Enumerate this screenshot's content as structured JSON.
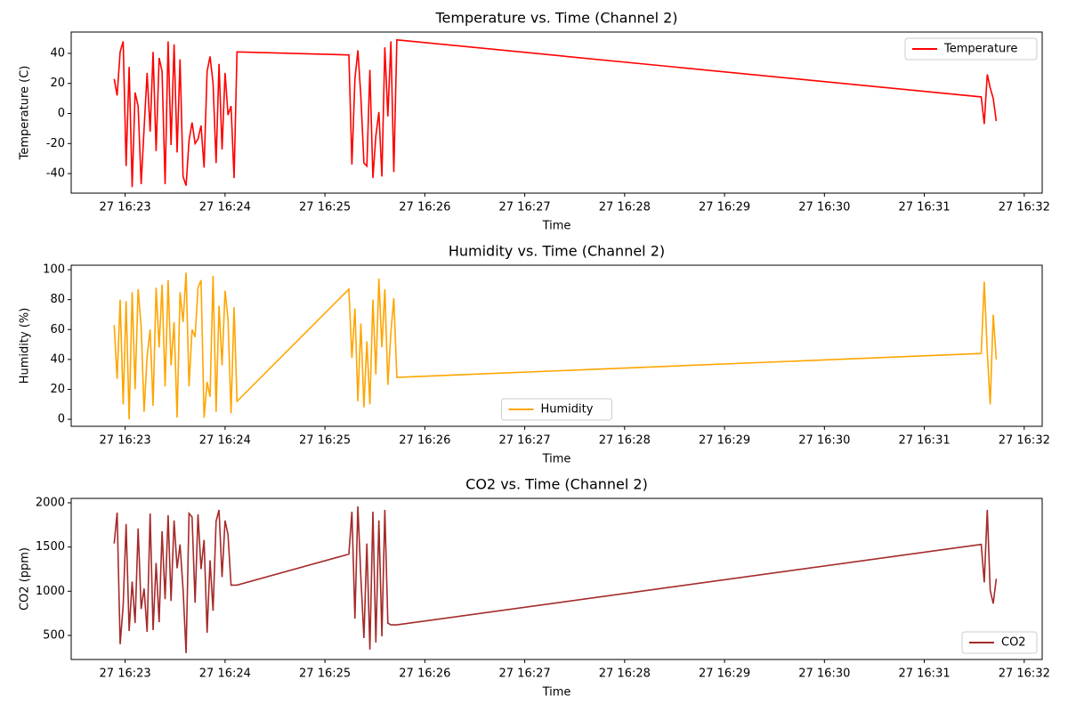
{
  "chart_data": [
    {
      "type": "line",
      "title": "Temperature vs. Time (Channel 2)",
      "xlabel": "Time",
      "ylabel": "Temperature (C)",
      "x": [
        22.89,
        22.92,
        22.95,
        22.98,
        23.01,
        23.04,
        23.07,
        23.1,
        23.13,
        23.16,
        23.19,
        23.22,
        23.25,
        23.28,
        23.31,
        23.34,
        23.37,
        23.4,
        23.43,
        23.46,
        23.49,
        23.52,
        23.55,
        23.58,
        23.61,
        23.64,
        23.67,
        23.7,
        23.73,
        23.76,
        23.79,
        23.82,
        23.85,
        23.88,
        23.91,
        23.94,
        23.97,
        24.0,
        24.03,
        24.06,
        24.09,
        24.12,
        25.24,
        25.27,
        25.3,
        25.33,
        25.36,
        25.39,
        25.42,
        25.45,
        25.48,
        25.51,
        25.54,
        25.57,
        25.6,
        25.63,
        25.66,
        25.69,
        25.72,
        31.57,
        31.6,
        31.63,
        31.66,
        31.69,
        31.72
      ],
      "series": [
        {
          "name": "Temperature",
          "color": "#ff0000",
          "values": [
            23,
            12,
            41,
            48,
            -35,
            31,
            -49,
            14,
            5,
            -47,
            -10,
            27,
            -12,
            41,
            -25,
            37,
            28,
            -47,
            48,
            -21,
            46,
            -26,
            36,
            -42,
            -48,
            -18,
            -6,
            -20,
            -17,
            -8,
            -36,
            28,
            38,
            20,
            -33,
            33,
            -24,
            27,
            -1,
            5,
            -43,
            41,
            39,
            -34,
            23,
            42,
            11,
            -33,
            -35,
            29,
            -43,
            -15,
            1,
            -42,
            44,
            -2,
            48,
            -39,
            49,
            11,
            -7,
            26,
            17,
            10,
            -5
          ]
        }
      ],
      "xlim": [
        22.46,
        32.18
      ],
      "ylim": [
        -53,
        54.2
      ],
      "xticks": [
        {
          "value": 23,
          "label": "27 16:23"
        },
        {
          "value": 24,
          "label": "27 16:24"
        },
        {
          "value": 25,
          "label": "27 16:25"
        },
        {
          "value": 26,
          "label": "27 16:26"
        },
        {
          "value": 27,
          "label": "27 16:27"
        },
        {
          "value": 28,
          "label": "27 16:28"
        },
        {
          "value": 29,
          "label": "27 16:29"
        },
        {
          "value": 30,
          "label": "27 16:30"
        },
        {
          "value": 31,
          "label": "27 16:31"
        },
        {
          "value": 32,
          "label": "27 16:32"
        }
      ],
      "yticks": [
        -40,
        -20,
        0,
        20,
        40
      ],
      "legend": "upper right"
    },
    {
      "type": "line",
      "title": "Humidity vs. Time (Channel 2)",
      "xlabel": "Time",
      "ylabel": "Humidity (%)",
      "x": [
        22.89,
        22.92,
        22.95,
        22.98,
        23.01,
        23.04,
        23.07,
        23.1,
        23.13,
        23.16,
        23.19,
        23.22,
        23.25,
        23.28,
        23.31,
        23.34,
        23.37,
        23.4,
        23.43,
        23.46,
        23.49,
        23.52,
        23.55,
        23.58,
        23.61,
        23.64,
        23.67,
        23.7,
        23.73,
        23.76,
        23.79,
        23.82,
        23.85,
        23.88,
        23.91,
        23.94,
        23.97,
        24.0,
        24.03,
        24.06,
        24.09,
        24.12,
        25.24,
        25.27,
        25.3,
        25.33,
        25.36,
        25.39,
        25.42,
        25.45,
        25.48,
        25.51,
        25.54,
        25.57,
        25.6,
        25.63,
        25.66,
        25.69,
        25.72,
        31.57,
        31.6,
        31.63,
        31.66,
        31.69,
        31.72
      ],
      "series": [
        {
          "name": "Humidity",
          "color": "#ffa500",
          "values": [
            63,
            27,
            80,
            10,
            79,
            0,
            85,
            20,
            87,
            62,
            5,
            42,
            60,
            9,
            88,
            48,
            90,
            22,
            93,
            36,
            65,
            1,
            85,
            65,
            98,
            22,
            60,
            55,
            88,
            93,
            1,
            25,
            15,
            96,
            5,
            76,
            36,
            86,
            67,
            4,
            75,
            12,
            87,
            41,
            74,
            12,
            64,
            8,
            52,
            10,
            80,
            30,
            94,
            48,
            87,
            23,
            58,
            81,
            28,
            44,
            92,
            45,
            10,
            70,
            40
          ]
        }
      ],
      "xlim": [
        22.46,
        32.18
      ],
      "ylim": [
        -4.7,
        103
      ],
      "xticks": [
        {
          "value": 23,
          "label": "27 16:23"
        },
        {
          "value": 24,
          "label": "27 16:24"
        },
        {
          "value": 25,
          "label": "27 16:25"
        },
        {
          "value": 26,
          "label": "27 16:26"
        },
        {
          "value": 27,
          "label": "27 16:27"
        },
        {
          "value": 28,
          "label": "27 16:28"
        },
        {
          "value": 29,
          "label": "27 16:29"
        },
        {
          "value": 30,
          "label": "27 16:30"
        },
        {
          "value": 31,
          "label": "27 16:31"
        },
        {
          "value": 32,
          "label": "27 16:32"
        }
      ],
      "yticks": [
        0,
        20,
        40,
        60,
        80,
        100
      ],
      "legend": "lower center"
    },
    {
      "type": "line",
      "title": "CO2 vs. Time (Channel 2)",
      "xlabel": "Time",
      "ylabel": "CO2 (ppm)",
      "x": [
        22.89,
        22.92,
        22.95,
        22.98,
        23.01,
        23.04,
        23.07,
        23.1,
        23.13,
        23.16,
        23.19,
        23.22,
        23.25,
        23.28,
        23.31,
        23.34,
        23.37,
        23.4,
        23.43,
        23.46,
        23.49,
        23.52,
        23.55,
        23.58,
        23.61,
        23.64,
        23.67,
        23.7,
        23.73,
        23.76,
        23.79,
        23.82,
        23.85,
        23.88,
        23.91,
        23.94,
        23.97,
        24.0,
        24.03,
        24.06,
        24.09,
        24.12,
        25.24,
        25.27,
        25.3,
        25.33,
        25.36,
        25.39,
        25.42,
        25.45,
        25.48,
        25.51,
        25.54,
        25.57,
        25.6,
        25.63,
        25.66,
        25.69,
        25.72,
        31.57,
        31.6,
        31.63,
        31.66,
        31.69,
        31.72
      ],
      "series": [
        {
          "name": "CO2",
          "color": "#a52a2a",
          "values": [
            1540,
            1890,
            400,
            840,
            1760,
            550,
            1110,
            640,
            1710,
            800,
            1030,
            540,
            1880,
            560,
            1320,
            650,
            1680,
            910,
            1860,
            890,
            1800,
            1260,
            1530,
            1020,
            300,
            1880,
            1840,
            870,
            1870,
            1250,
            1580,
            530,
            1350,
            780,
            1790,
            1920,
            1160,
            1800,
            1640,
            1070,
            1070,
            1070,
            1420,
            1900,
            690,
            1960,
            1150,
            470,
            1540,
            340,
            1900,
            420,
            1800,
            490,
            1920,
            640,
            620,
            620,
            620,
            1530,
            1100,
            1920,
            1010,
            860,
            1140
          ]
        }
      ],
      "xlim": [
        22.46,
        32.18
      ],
      "ylim": [
        228,
        2050
      ],
      "xticks": [
        {
          "value": 23,
          "label": "27 16:23"
        },
        {
          "value": 24,
          "label": "27 16:24"
        },
        {
          "value": 25,
          "label": "27 16:25"
        },
        {
          "value": 26,
          "label": "27 16:26"
        },
        {
          "value": 27,
          "label": "27 16:27"
        },
        {
          "value": 28,
          "label": "27 16:28"
        },
        {
          "value": 29,
          "label": "27 16:29"
        },
        {
          "value": 30,
          "label": "27 16:30"
        },
        {
          "value": 31,
          "label": "27 16:31"
        },
        {
          "value": 32,
          "label": "27 16:32"
        }
      ],
      "yticks": [
        500,
        1000,
        1500,
        2000
      ],
      "legend": "lower right"
    }
  ]
}
